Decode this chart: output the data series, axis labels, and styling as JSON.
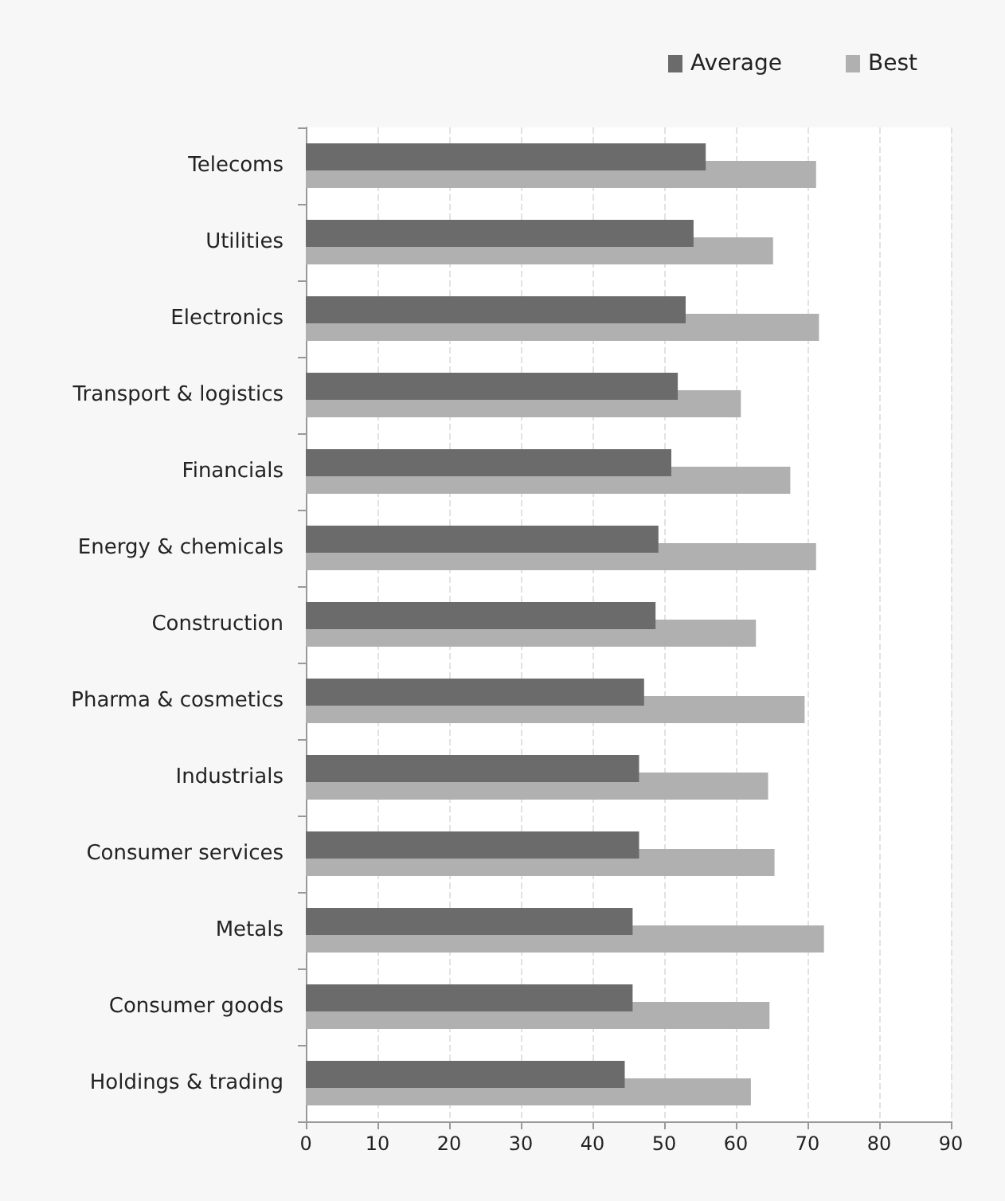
{
  "chart_data": {
    "type": "bar",
    "orientation": "horizontal",
    "categories": [
      "Telecoms",
      "Utilities",
      "Electronics",
      "Transport & logistics",
      "Financials",
      "Energy & chemicals",
      "Construction",
      "Pharma & cosmetics",
      "Industrials",
      "Consumer services",
      "Metals",
      "Consumer goods",
      "Holdings & trading"
    ],
    "series": [
      {
        "name": "Average",
        "color": "#6b6b6b",
        "values": [
          55.8,
          54.1,
          53.0,
          51.9,
          51.0,
          49.2,
          48.8,
          47.2,
          46.5,
          46.5,
          45.6,
          45.6,
          44.5
        ]
      },
      {
        "name": "Best",
        "color": "#b0b0b0",
        "values": [
          71.2,
          65.2,
          71.6,
          60.7,
          67.6,
          71.2,
          62.8,
          69.6,
          64.5,
          65.4,
          72.3,
          64.7,
          62.1
        ]
      }
    ],
    "xlim": [
      0,
      90
    ],
    "xticks": [
      0,
      10,
      20,
      30,
      40,
      50,
      60,
      70,
      80,
      90
    ],
    "grid": "x",
    "legend": "top right"
  }
}
